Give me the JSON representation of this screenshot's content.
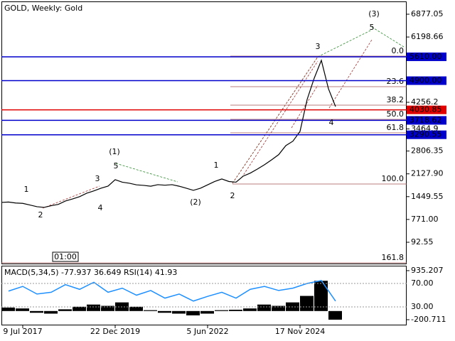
{
  "chart_data": {
    "type": "line",
    "title": "GOLD, Weekly:  Gold",
    "time_box": "01:00",
    "categories": [
      null,
      null,
      null,
      "9 Jul 2017",
      null,
      null,
      null,
      null,
      null,
      null,
      null,
      null,
      null,
      null,
      null,
      null,
      "22 Dec 2019",
      null,
      null,
      null,
      null,
      null,
      null,
      null,
      null,
      null,
      null,
      null,
      null,
      "5 Jun 2022",
      null,
      null,
      null,
      null,
      null,
      null,
      null,
      null,
      null,
      null,
      null,
      null,
      "17 Nov 2024",
      null,
      null,
      null,
      null,
      null
    ],
    "series": [
      {
        "name": "GOLD",
        "color": "#000000",
        "values": [
          1278,
          1290,
          1260,
          1250,
          1200,
          1150,
          1130,
          1180,
          1220,
          1320,
          1380,
          1450,
          1552,
          1620,
          1700,
          1764,
          1954,
          1880,
          1848,
          1800,
          1785,
          1760,
          1806,
          1790,
          1806,
          1760,
          1700,
          1637,
          1700,
          1800,
          1900,
          1975,
          1900,
          1880,
          2059,
          2150,
          2270,
          2400,
          2545,
          2700,
          2968,
          3100,
          3391,
          4341,
          4975,
          5504,
          4659,
          4130
        ]
      }
    ],
    "ylim": [
      -562.6,
      7257.4
    ],
    "yticks": [
      6877.05,
      6198.66,
      4256.2,
      3464.9,
      2806.35,
      {
        "value": 2127.9,
        "label": "2127.90"
      },
      1449.55,
      {
        "value": 771,
        "label": "771.00"
      },
      92.55
    ],
    "levels": [
      {
        "value": 5610,
        "label": "5610.00",
        "color": "#0000cc"
      },
      {
        "value": 4900,
        "label": "4900.00",
        "color": "#0000cc"
      },
      {
        "value": 4030.85,
        "label": "4030.85",
        "color": "#e00000"
      },
      {
        "value": 3718.62,
        "label": "3718.62",
        "color": "#0000cc"
      },
      {
        "value": 3290.55,
        "label": "3290.55",
        "color": "#0000cc"
      }
    ],
    "fib_levels": [
      "0.0",
      "23.6",
      "38.2",
      "50.0",
      "61.8",
      "100.0",
      "161.8"
    ],
    "waves": [
      {
        "label": "1",
        "color": "#a83232"
      },
      {
        "label": "2",
        "color": "#a83232"
      },
      {
        "label": "3",
        "color": "#a83232"
      },
      {
        "label": "4",
        "color": "#a83232"
      },
      {
        "label": "5",
        "color": "#a83232"
      },
      {
        "label": "(1)",
        "color": "#2e8b2e"
      },
      {
        "label": "(2)",
        "color": "#2e8b2e"
      },
      {
        "label": "1",
        "color": "#a83232"
      },
      {
        "label": "2",
        "color": "#a83232"
      },
      {
        "label": "3",
        "color": "#a83232"
      },
      {
        "label": "4",
        "color": "#a83232"
      },
      {
        "label": "5",
        "color": "#a83232"
      },
      {
        "label": "(3)",
        "color": "#2e8b2e"
      }
    ],
    "indicator": {
      "title": "MACD(5,34,5) -77.937 36.649 RSI(14) 41.93",
      "macd_ylim": [
        -332,
        1017
      ],
      "macd_ticks": [
        935.207,
        -200.711
      ],
      "macd_color": "#000000",
      "macd_values": [
        80,
        60,
        -40,
        -60,
        40,
        100,
        150,
        120,
        200,
        100,
        20,
        -40,
        -60,
        -100,
        -60,
        20,
        30,
        60,
        150,
        120,
        200,
        350,
        700,
        -200
      ],
      "rsi_ylim": [
        -1.5,
        97.9
      ],
      "rsi_ticks": [
        {
          "value": 70,
          "label": "70.00"
        },
        {
          "value": 30,
          "label": "30.00"
        }
      ],
      "rsi_color": "#1e90ff",
      "rsi_values": [
        57,
        65,
        52,
        55,
        68,
        60,
        72,
        55,
        62,
        50,
        58,
        45,
        52,
        40,
        48,
        55,
        45,
        60,
        65,
        58,
        62,
        70,
        75,
        40
      ]
    }
  }
}
